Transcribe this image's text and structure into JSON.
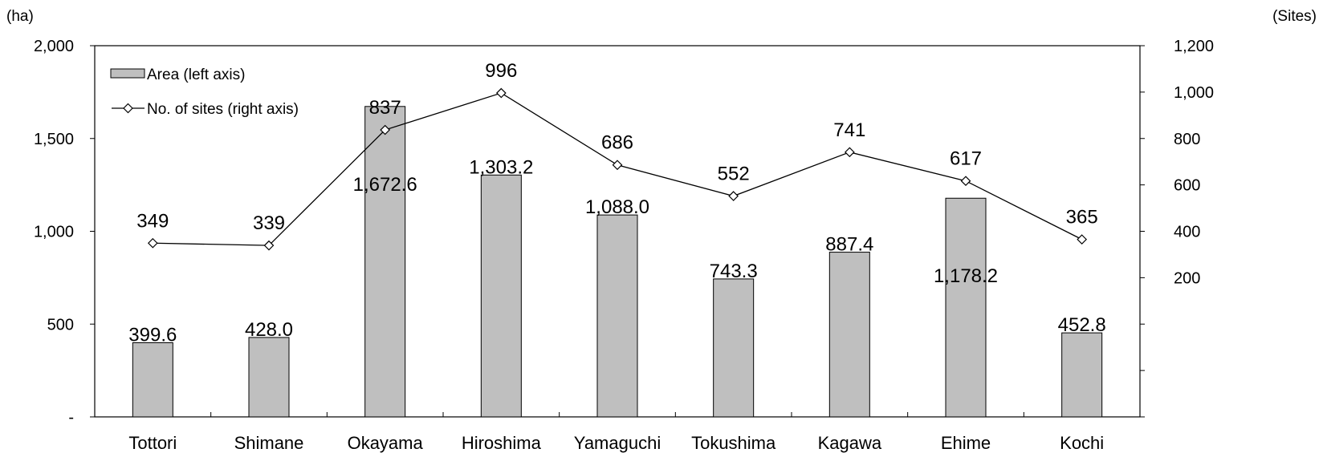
{
  "chart_data": {
    "type": "bar",
    "categories": [
      "Tottori",
      "Shimane",
      "Okayama",
      "Hiroshima",
      "Yamaguchi",
      "Tokushima",
      "Kagawa",
      "Ehime",
      "Kochi"
    ],
    "series": [
      {
        "name": "Area (left axis)",
        "type": "bar",
        "axis": "left",
        "values": [
          399.6,
          428.0,
          1672.6,
          1303.2,
          1088.0,
          743.3,
          887.4,
          1178.2,
          452.8
        ],
        "labels": [
          "399.6",
          "428.0",
          "1,672.6",
          "1,303.2",
          "1,088.0",
          "743.3",
          "887.4",
          "1,178.2",
          "452.8"
        ],
        "color": "#bfbfbf"
      },
      {
        "name": "No. of sites (right axis)",
        "type": "line",
        "axis": "right",
        "values": [
          349,
          339,
          837,
          996,
          686,
          552,
          741,
          617,
          365
        ],
        "labels": [
          "349",
          "339",
          "837",
          "996",
          "686",
          "552",
          "741",
          "617",
          "365"
        ],
        "color": "#000000"
      }
    ],
    "left_axis": {
      "unit": "(ha)",
      "ylim": [
        0,
        2000
      ],
      "ticks": [
        0,
        500,
        1000,
        1500,
        2000
      ],
      "tick_labels": [
        "-",
        "500",
        "1,000",
        "1,500",
        "2,000"
      ]
    },
    "right_axis": {
      "unit": "(Sites)",
      "ylim": [
        -400,
        1200
      ],
      "ticks": [
        -400,
        -200,
        0,
        200,
        400,
        600,
        800,
        1000,
        1200
      ],
      "tick_labels": [
        "",
        "",
        "",
        "200",
        "400",
        "600",
        "800",
        "1,000",
        "1,200"
      ]
    },
    "grid": false,
    "legend_position": "top-left"
  }
}
